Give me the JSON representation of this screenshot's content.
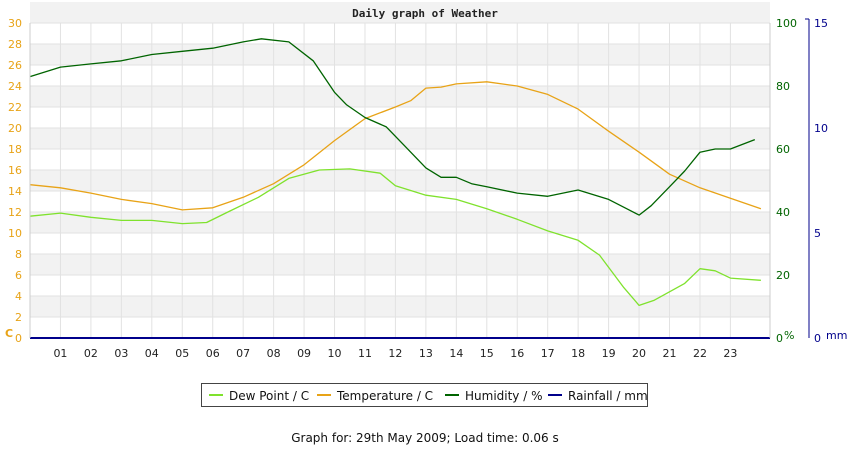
{
  "chart_data": {
    "type": "line",
    "title": "Daily graph of Weather",
    "x_ticks": [
      "01",
      "02",
      "03",
      "04",
      "05",
      "06",
      "07",
      "08",
      "09",
      "10",
      "11",
      "12",
      "13",
      "14",
      "15",
      "16",
      "17",
      "18",
      "19",
      "20",
      "21",
      "22",
      "23"
    ],
    "xlim": [
      0,
      24.3
    ],
    "axes": {
      "left": {
        "unit": "C",
        "ylim": [
          0,
          30
        ],
        "ticks": [
          0,
          2,
          4,
          6,
          8,
          10,
          12,
          14,
          16,
          18,
          20,
          22,
          24,
          26,
          28,
          30
        ],
        "color": "#e8a317"
      },
      "right1": {
        "unit": "%",
        "ylim": [
          0,
          100
        ],
        "ticks": [
          0,
          20,
          40,
          60,
          80,
          100
        ],
        "color": "#006400"
      },
      "right2": {
        "unit": "mm",
        "ylim": [
          0,
          15
        ],
        "ticks": [
          0,
          5,
          10,
          15
        ],
        "color": "#00008b"
      }
    },
    "grid": "horizontal bands",
    "legend_position": "bottom",
    "series": [
      {
        "name": "Dew Point / C",
        "axis": "left",
        "color": "#7fe22d",
        "x": [
          0,
          1,
          2,
          3,
          4,
          5,
          5.8,
          6.5,
          7.5,
          8.5,
          9.5,
          10.5,
          11.5,
          12,
          13,
          14,
          15,
          16,
          17,
          18,
          18.7,
          19.5,
          20,
          20.5,
          21.5,
          22,
          22.5,
          23,
          24
        ],
        "y": [
          11.6,
          11.9,
          11.5,
          11.2,
          11.2,
          10.9,
          11.0,
          12.0,
          13.4,
          15.2,
          16.0,
          16.1,
          15.7,
          14.5,
          13.6,
          13.2,
          12.3,
          11.3,
          10.2,
          9.3,
          7.9,
          4.8,
          3.1,
          3.6,
          5.2,
          6.6,
          6.4,
          5.7,
          5.5
        ]
      },
      {
        "name": "Temperature / C",
        "axis": "left",
        "color": "#e8a317",
        "x": [
          0,
          1,
          2,
          3,
          4,
          5,
          6,
          7,
          8,
          9,
          10,
          11,
          12,
          12.5,
          13,
          13.5,
          14,
          15,
          16,
          17,
          18,
          19,
          20,
          21,
          22,
          23,
          24
        ],
        "y": [
          14.6,
          14.3,
          13.8,
          13.2,
          12.8,
          12.2,
          12.4,
          13.4,
          14.7,
          16.5,
          18.8,
          20.9,
          22.0,
          22.6,
          23.8,
          23.9,
          24.2,
          24.4,
          24.0,
          23.2,
          21.8,
          19.7,
          17.7,
          15.6,
          14.3,
          13.3,
          12.3
        ]
      },
      {
        "name": "Humidity / %",
        "axis": "right1",
        "color": "#006400",
        "x": [
          0,
          1,
          2,
          3,
          4,
          5,
          6,
          7,
          7.6,
          8.5,
          9.3,
          10,
          10.4,
          11,
          11.7,
          12.3,
          13,
          13.5,
          14,
          14.5,
          15,
          16,
          17,
          18,
          19,
          19.6,
          20,
          20.4,
          21,
          21.5,
          22,
          22.5,
          23,
          23.8
        ],
        "y": [
          83,
          86,
          87,
          88,
          90,
          91,
          92,
          94,
          95,
          94,
          88,
          78,
          74,
          70,
          67,
          61,
          54,
          51,
          51,
          49,
          48,
          46,
          45,
          47,
          44,
          41,
          39,
          42,
          48,
          53,
          59,
          60,
          60,
          63
        ]
      },
      {
        "name": "Rainfall / mm",
        "axis": "right2",
        "color": "#00008b",
        "x": [
          0,
          24.3
        ],
        "y": [
          0,
          0
        ]
      }
    ]
  },
  "footer": {
    "text": "Graph for: 29th May 2009; Load time: 0.06 s"
  }
}
